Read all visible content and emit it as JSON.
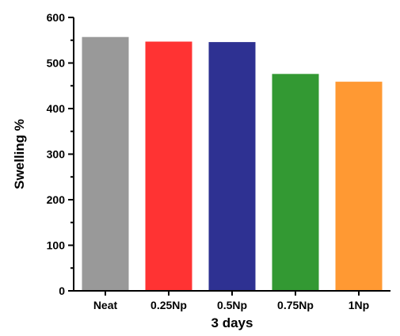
{
  "chart_data": {
    "type": "bar",
    "categories": [
      "Neat",
      "0.25Np",
      "0.5Np",
      "0.75Np",
      "1Np"
    ],
    "values": [
      557,
      547,
      546,
      476,
      459
    ],
    "colors": [
      "#999999",
      "#ff3333",
      "#2e3192",
      "#339933",
      "#ff9933"
    ],
    "title": "",
    "xlabel": "3 days",
    "ylabel": "Swelling %",
    "ylim": [
      0,
      600
    ],
    "yticks": [
      0,
      100,
      200,
      300,
      400,
      500,
      600
    ],
    "grid": false,
    "legend": "none"
  }
}
